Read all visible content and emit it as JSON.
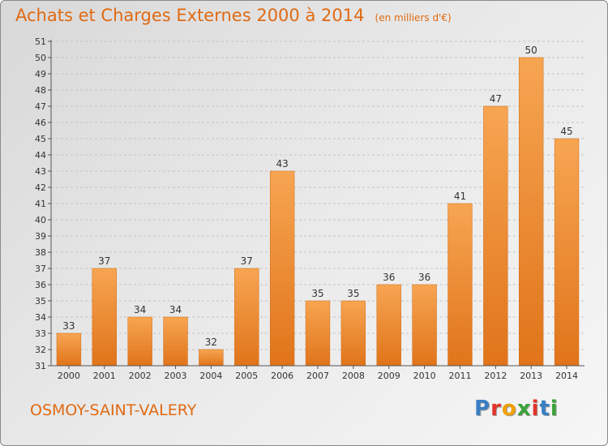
{
  "title": "Achats et Charges Externes 2000 à 2014",
  "subtitle": "(en milliers d'€)",
  "commune": "OSMOY-SAINT-VALERY",
  "logo": {
    "letters": [
      "P",
      "r",
      "o",
      "x",
      "i",
      "t",
      "i"
    ],
    "colors": [
      "#3a7fc4",
      "#e2342a",
      "#f0a000",
      "#3aa33a",
      "#e2342a",
      "#3a7fc4",
      "#3aa33a"
    ]
  },
  "chart_data": {
    "type": "bar",
    "categories": [
      "2000",
      "2001",
      "2002",
      "2003",
      "2004",
      "2005",
      "2006",
      "2007",
      "2008",
      "2009",
      "2010",
      "2011",
      "2012",
      "2013",
      "2014"
    ],
    "values": [
      33,
      37,
      34,
      34,
      32,
      37,
      43,
      35,
      35,
      36,
      36,
      41,
      47,
      50,
      45
    ],
    "ylim": [
      31,
      51
    ],
    "yticks": [
      31,
      32,
      33,
      34,
      35,
      36,
      37,
      38,
      39,
      40,
      41,
      42,
      43,
      44,
      45,
      46,
      47,
      48,
      49,
      50,
      51
    ],
    "grid": true,
    "bar_color": "#f08a2c"
  }
}
